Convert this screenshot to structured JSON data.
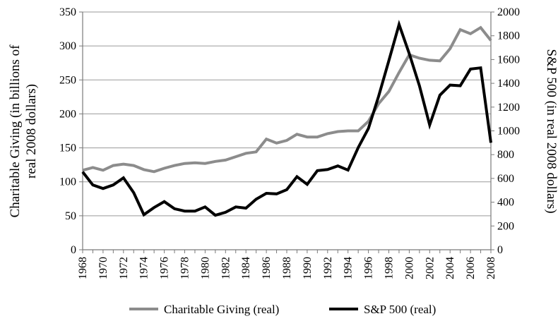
{
  "chart_data": {
    "type": "line",
    "title": "",
    "xlabel": "",
    "ylabel_left_lines": [
      "Charitable Giving (in billions of",
      "real 2008 dollars)"
    ],
    "ylabel_right": "S&P 500 (in real 2008 dollars)",
    "x": [
      1968,
      1969,
      1970,
      1971,
      1972,
      1973,
      1974,
      1975,
      1976,
      1977,
      1978,
      1979,
      1980,
      1981,
      1982,
      1983,
      1984,
      1985,
      1986,
      1987,
      1988,
      1989,
      1990,
      1991,
      1992,
      1993,
      1994,
      1995,
      1996,
      1997,
      1998,
      1999,
      2000,
      2001,
      2002,
      2003,
      2004,
      2005,
      2006,
      2007,
      2008
    ],
    "x_ticks": [
      1968,
      1970,
      1972,
      1974,
      1976,
      1978,
      1980,
      1982,
      1984,
      1986,
      1988,
      1990,
      1992,
      1994,
      1996,
      1998,
      2000,
      2002,
      2004,
      2006,
      2008
    ],
    "y_left_ticks": [
      0,
      50,
      100,
      150,
      200,
      250,
      300,
      350
    ],
    "y_right_ticks": [
      0,
      200,
      400,
      600,
      800,
      1000,
      1200,
      1400,
      1600,
      1800,
      2000
    ],
    "ylim_left": [
      0,
      350
    ],
    "ylim_right": [
      0,
      2000
    ],
    "grid": "horizontal",
    "legend_position": "bottom",
    "series": [
      {
        "name": "Charitable Giving (real)",
        "axis": "left",
        "color": "#8c8c8c",
        "values": [
          117,
          121,
          117,
          124,
          126,
          124,
          118,
          115,
          120,
          124,
          127,
          128,
          127,
          130,
          132,
          137,
          142,
          144,
          163,
          157,
          161,
          170,
          166,
          166,
          171,
          174,
          175,
          175,
          189,
          215,
          233,
          261,
          287,
          282,
          279,
          278,
          296,
          324,
          318,
          327,
          308
        ]
      },
      {
        "name": "S&P 500 (real)",
        "axis": "right",
        "color": "#000000",
        "values": [
          655,
          545,
          515,
          545,
          605,
          480,
          295,
          355,
          405,
          345,
          325,
          325,
          360,
          290,
          315,
          360,
          350,
          425,
          475,
          470,
          505,
          615,
          550,
          665,
          675,
          705,
          670,
          860,
          1020,
          1290,
          1590,
          1895,
          1650,
          1380,
          1050,
          1300,
          1385,
          1380,
          1520,
          1530,
          900
        ]
      }
    ]
  }
}
